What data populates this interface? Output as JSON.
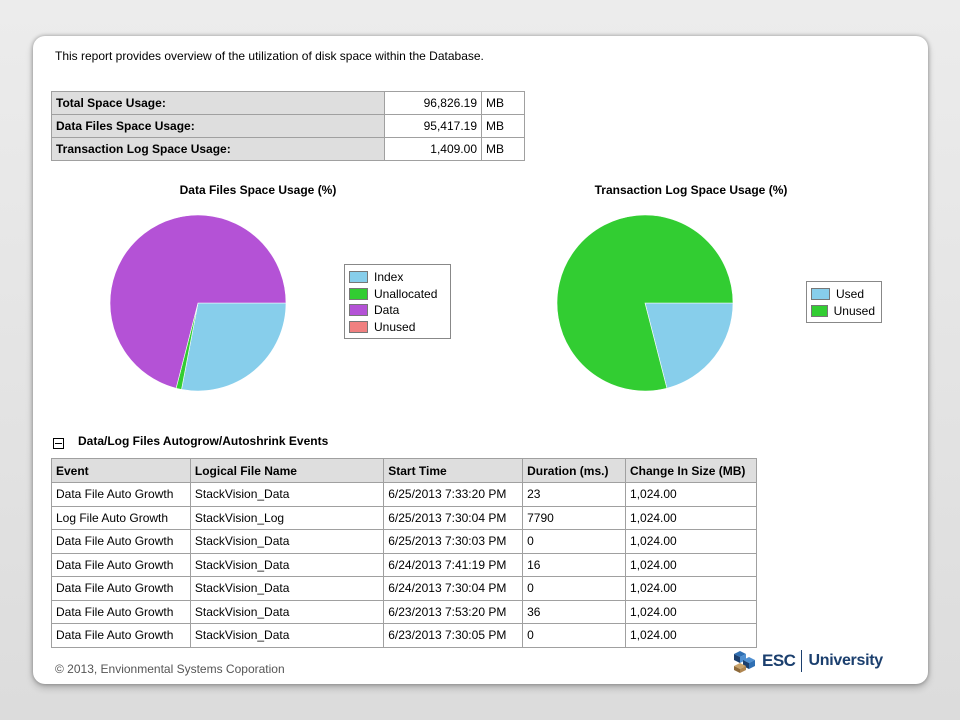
{
  "intro": "This report provides overview of the utilization of disk space within the Database.",
  "summary": [
    {
      "label": "Total Space Usage:",
      "value": "96,826.19",
      "unit": "MB"
    },
    {
      "label": "Data Files Space Usage:",
      "value": "95,417.19",
      "unit": "MB"
    },
    {
      "label": "Transaction Log Space Usage:",
      "value": "1,409.00",
      "unit": "MB"
    }
  ],
  "chart_data": [
    {
      "type": "pie",
      "title": "Data Files Space Usage (%)",
      "legend_position": "right",
      "slices": [
        {
          "label": "Index",
          "value": 28,
          "color": "#87ceeb"
        },
        {
          "label": "Unallocated",
          "value": 1,
          "color": "#32cd32"
        },
        {
          "label": "Data",
          "value": 71,
          "color": "#b452d6"
        },
        {
          "label": "Unused",
          "value": 0,
          "color": "#f08080"
        }
      ]
    },
    {
      "type": "pie",
      "title": "Transaction Log Space Usage (%)",
      "legend_position": "right",
      "slices": [
        {
          "label": "Used",
          "value": 21,
          "color": "#87ceeb"
        },
        {
          "label": "Unused",
          "value": 79,
          "color": "#32cd32"
        }
      ]
    }
  ],
  "events_section": {
    "title": "Data/Log Files Autogrow/Autoshrink Events",
    "columns": [
      "Event",
      "Logical File Name",
      "Start Time",
      "Duration (ms.)",
      "Change In Size (MB)"
    ],
    "rows": [
      [
        "Data File Auto Growth",
        "StackVision_Data",
        "6/25/2013 7:33:20 PM",
        "23",
        "1,024.00"
      ],
      [
        "Log File Auto Growth",
        "StackVision_Log",
        "6/25/2013 7:30:04 PM",
        "7790",
        "1,024.00"
      ],
      [
        "Data File Auto Growth",
        "StackVision_Data",
        "6/25/2013 7:30:03 PM",
        "0",
        "1,024.00"
      ],
      [
        "Data File Auto Growth",
        "StackVision_Data",
        "6/24/2013 7:41:19 PM",
        "16",
        "1,024.00"
      ],
      [
        "Data File Auto Growth",
        "StackVision_Data",
        "6/24/2013 7:30:04 PM",
        "0",
        "1,024.00"
      ],
      [
        "Data File Auto Growth",
        "StackVision_Data",
        "6/23/2013 7:53:20 PM",
        "36",
        "1,024.00"
      ],
      [
        "Data File Auto Growth",
        "StackVision_Data",
        "6/23/2013 7:30:05 PM",
        "0",
        "1,024.00"
      ]
    ]
  },
  "footer": {
    "copyright": "© 2013, Envionmental Systems Coporation",
    "logo_esc": "ESC",
    "logo_university": "University"
  }
}
